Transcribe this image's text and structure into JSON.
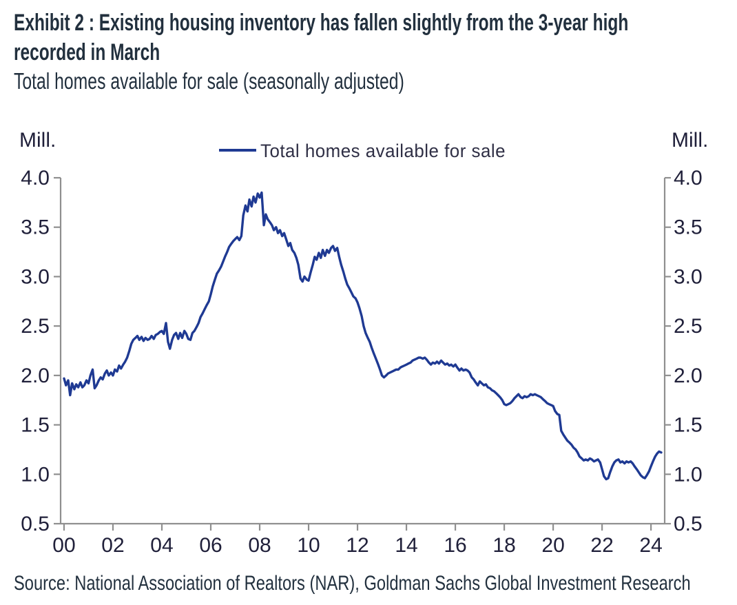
{
  "header": {
    "title_line1": "Exhibit 2 : Existing housing inventory has fallen slightly from the 3-year high",
    "title_line2": "recorded in March",
    "subtitle": "Total homes available for sale (seasonally adjusted)"
  },
  "footer": {
    "source": "Source: National Association of Realtors (NAR), Goldman Sachs Global Investment Research"
  },
  "chart_data": {
    "type": "line",
    "title": "Exhibit 2 : Existing housing inventory has fallen slightly from the 3-year high recorded in March",
    "subtitle": "Total homes available for sale (seasonally adjusted)",
    "xlabel": "",
    "ylabel": "Mill.",
    "unit_label_left": "Mill.",
    "unit_label_right": "Mill.",
    "legend_position": "top-center",
    "grid": false,
    "axis_color": "#8f8f8f",
    "tick_label_color": "#20203a",
    "line_color": "#1f3a93",
    "legend_text_color": "#2f2f45",
    "ylim": [
      0.5,
      4.0
    ],
    "xlim": [
      -0.14,
      24.56
    ],
    "x_ticks": {
      "values": [
        0,
        2,
        4,
        6,
        8,
        10,
        12,
        14,
        16,
        18,
        20,
        22,
        24
      ],
      "labels": [
        "00",
        "02",
        "04",
        "06",
        "08",
        "10",
        "12",
        "14",
        "16",
        "18",
        "20",
        "22",
        "24"
      ]
    },
    "y_ticks": {
      "values": [
        0.5,
        1.0,
        1.5,
        2.0,
        2.5,
        3.0,
        3.5,
        4.0
      ],
      "labels": [
        "0.5",
        "1.0",
        "1.5",
        "2.0",
        "2.5",
        "3.0",
        "3.5",
        "4.0"
      ]
    },
    "legend": [
      {
        "label": "Total homes available for sale",
        "color": "#1f3a93"
      }
    ],
    "series": [
      {
        "name": "Total homes available for sale",
        "points": [
          [
            0.0,
            1.97
          ],
          [
            0.08,
            1.9
          ],
          [
            0.17,
            1.95
          ],
          [
            0.25,
            1.8
          ],
          [
            0.33,
            1.92
          ],
          [
            0.42,
            1.86
          ],
          [
            0.5,
            1.91
          ],
          [
            0.58,
            1.88
          ],
          [
            0.67,
            1.93
          ],
          [
            0.75,
            1.88
          ],
          [
            0.83,
            1.9
          ],
          [
            0.92,
            1.95
          ],
          [
            1.0,
            1.92
          ],
          [
            1.08,
            2.0
          ],
          [
            1.17,
            2.06
          ],
          [
            1.25,
            1.87
          ],
          [
            1.33,
            1.9
          ],
          [
            1.42,
            1.95
          ],
          [
            1.5,
            1.98
          ],
          [
            1.58,
            1.96
          ],
          [
            1.67,
            2.02
          ],
          [
            1.75,
            2.05
          ],
          [
            1.83,
            2.0
          ],
          [
            1.92,
            2.03
          ],
          [
            2.0,
            2.0
          ],
          [
            2.08,
            2.06
          ],
          [
            2.17,
            2.04
          ],
          [
            2.25,
            2.1
          ],
          [
            2.33,
            2.07
          ],
          [
            2.42,
            2.11
          ],
          [
            2.5,
            2.14
          ],
          [
            2.58,
            2.18
          ],
          [
            2.67,
            2.25
          ],
          [
            2.75,
            2.32
          ],
          [
            2.83,
            2.36
          ],
          [
            2.92,
            2.38
          ],
          [
            3.0,
            2.4
          ],
          [
            3.08,
            2.36
          ],
          [
            3.17,
            2.39
          ],
          [
            3.25,
            2.35
          ],
          [
            3.33,
            2.38
          ],
          [
            3.42,
            2.36
          ],
          [
            3.5,
            2.37
          ],
          [
            3.58,
            2.4
          ],
          [
            3.67,
            2.37
          ],
          [
            3.75,
            2.41
          ],
          [
            3.83,
            2.42
          ],
          [
            3.92,
            2.44
          ],
          [
            4.0,
            2.45
          ],
          [
            4.08,
            2.42
          ],
          [
            4.17,
            2.53
          ],
          [
            4.25,
            2.34
          ],
          [
            4.33,
            2.27
          ],
          [
            4.42,
            2.36
          ],
          [
            4.5,
            2.41
          ],
          [
            4.58,
            2.43
          ],
          [
            4.67,
            2.37
          ],
          [
            4.75,
            2.43
          ],
          [
            4.83,
            2.38
          ],
          [
            4.92,
            2.45
          ],
          [
            5.0,
            2.42
          ],
          [
            5.08,
            2.37
          ],
          [
            5.17,
            2.36
          ],
          [
            5.25,
            2.43
          ],
          [
            5.33,
            2.45
          ],
          [
            5.42,
            2.49
          ],
          [
            5.5,
            2.53
          ],
          [
            5.58,
            2.59
          ],
          [
            5.67,
            2.63
          ],
          [
            5.75,
            2.67
          ],
          [
            5.83,
            2.71
          ],
          [
            5.92,
            2.75
          ],
          [
            6.0,
            2.82
          ],
          [
            6.08,
            2.9
          ],
          [
            6.17,
            2.97
          ],
          [
            6.25,
            3.03
          ],
          [
            6.33,
            3.06
          ],
          [
            6.42,
            3.1
          ],
          [
            6.5,
            3.15
          ],
          [
            6.58,
            3.2
          ],
          [
            6.67,
            3.25
          ],
          [
            6.75,
            3.3
          ],
          [
            6.83,
            3.33
          ],
          [
            6.92,
            3.36
          ],
          [
            7.0,
            3.38
          ],
          [
            7.08,
            3.4
          ],
          [
            7.17,
            3.37
          ],
          [
            7.25,
            3.41
          ],
          [
            7.33,
            3.62
          ],
          [
            7.42,
            3.72
          ],
          [
            7.5,
            3.66
          ],
          [
            7.58,
            3.78
          ],
          [
            7.67,
            3.71
          ],
          [
            7.75,
            3.81
          ],
          [
            7.83,
            3.75
          ],
          [
            7.92,
            3.84
          ],
          [
            8.0,
            3.8
          ],
          [
            8.08,
            3.85
          ],
          [
            8.17,
            3.52
          ],
          [
            8.25,
            3.63
          ],
          [
            8.33,
            3.58
          ],
          [
            8.42,
            3.55
          ],
          [
            8.5,
            3.52
          ],
          [
            8.58,
            3.47
          ],
          [
            8.67,
            3.5
          ],
          [
            8.75,
            3.44
          ],
          [
            8.83,
            3.47
          ],
          [
            8.92,
            3.41
          ],
          [
            9.0,
            3.44
          ],
          [
            9.08,
            3.38
          ],
          [
            9.17,
            3.31
          ],
          [
            9.25,
            3.34
          ],
          [
            9.33,
            3.27
          ],
          [
            9.42,
            3.24
          ],
          [
            9.5,
            3.19
          ],
          [
            9.58,
            3.12
          ],
          [
            9.67,
            2.98
          ],
          [
            9.75,
            2.95
          ],
          [
            9.83,
            3.0
          ],
          [
            9.92,
            2.97
          ],
          [
            10.0,
            2.96
          ],
          [
            10.08,
            3.04
          ],
          [
            10.17,
            3.12
          ],
          [
            10.25,
            3.2
          ],
          [
            10.33,
            3.17
          ],
          [
            10.42,
            3.24
          ],
          [
            10.5,
            3.19
          ],
          [
            10.58,
            3.27
          ],
          [
            10.67,
            3.21
          ],
          [
            10.75,
            3.27
          ],
          [
            10.83,
            3.24
          ],
          [
            10.92,
            3.29
          ],
          [
            11.0,
            3.31
          ],
          [
            11.08,
            3.26
          ],
          [
            11.17,
            3.29
          ],
          [
            11.25,
            3.2
          ],
          [
            11.33,
            3.12
          ],
          [
            11.42,
            3.05
          ],
          [
            11.5,
            2.98
          ],
          [
            11.58,
            2.92
          ],
          [
            11.67,
            2.88
          ],
          [
            11.75,
            2.84
          ],
          [
            11.83,
            2.8
          ],
          [
            11.92,
            2.78
          ],
          [
            12.0,
            2.74
          ],
          [
            12.08,
            2.68
          ],
          [
            12.17,
            2.6
          ],
          [
            12.25,
            2.5
          ],
          [
            12.33,
            2.43
          ],
          [
            12.42,
            2.38
          ],
          [
            12.5,
            2.34
          ],
          [
            12.58,
            2.28
          ],
          [
            12.67,
            2.22
          ],
          [
            12.75,
            2.17
          ],
          [
            12.83,
            2.12
          ],
          [
            12.92,
            2.06
          ],
          [
            13.0,
            2.0
          ],
          [
            13.08,
            1.98
          ],
          [
            13.17,
            2.0
          ],
          [
            13.25,
            2.02
          ],
          [
            13.33,
            2.03
          ],
          [
            13.42,
            2.04
          ],
          [
            13.5,
            2.05
          ],
          [
            13.58,
            2.06
          ],
          [
            13.67,
            2.06
          ],
          [
            13.75,
            2.08
          ],
          [
            13.83,
            2.09
          ],
          [
            13.92,
            2.1
          ],
          [
            14.0,
            2.11
          ],
          [
            14.08,
            2.12
          ],
          [
            14.17,
            2.13
          ],
          [
            14.25,
            2.15
          ],
          [
            14.33,
            2.16
          ],
          [
            14.42,
            2.17
          ],
          [
            14.5,
            2.18
          ],
          [
            14.58,
            2.18
          ],
          [
            14.67,
            2.17
          ],
          [
            14.75,
            2.18
          ],
          [
            14.83,
            2.16
          ],
          [
            14.92,
            2.13
          ],
          [
            15.0,
            2.11
          ],
          [
            15.08,
            2.13
          ],
          [
            15.17,
            2.12
          ],
          [
            15.25,
            2.14
          ],
          [
            15.33,
            2.12
          ],
          [
            15.42,
            2.15
          ],
          [
            15.5,
            2.13
          ],
          [
            15.58,
            2.11
          ],
          [
            15.67,
            2.12
          ],
          [
            15.75,
            2.1
          ],
          [
            15.83,
            2.11
          ],
          [
            15.92,
            2.09
          ],
          [
            16.0,
            2.11
          ],
          [
            16.08,
            2.08
          ],
          [
            16.17,
            2.05
          ],
          [
            16.25,
            2.07
          ],
          [
            16.33,
            2.05
          ],
          [
            16.42,
            2.06
          ],
          [
            16.5,
            2.05
          ],
          [
            16.58,
            2.03
          ],
          [
            16.67,
            1.98
          ],
          [
            16.75,
            1.96
          ],
          [
            16.83,
            1.93
          ],
          [
            16.92,
            1.9
          ],
          [
            17.0,
            1.94
          ],
          [
            17.08,
            1.92
          ],
          [
            17.17,
            1.9
          ],
          [
            17.25,
            1.91
          ],
          [
            17.33,
            1.88
          ],
          [
            17.42,
            1.87
          ],
          [
            17.5,
            1.85
          ],
          [
            17.58,
            1.84
          ],
          [
            17.67,
            1.82
          ],
          [
            17.75,
            1.8
          ],
          [
            17.83,
            1.78
          ],
          [
            17.92,
            1.75
          ],
          [
            18.0,
            1.71
          ],
          [
            18.08,
            1.7
          ],
          [
            18.17,
            1.71
          ],
          [
            18.25,
            1.72
          ],
          [
            18.33,
            1.74
          ],
          [
            18.42,
            1.77
          ],
          [
            18.5,
            1.79
          ],
          [
            18.58,
            1.81
          ],
          [
            18.67,
            1.78
          ],
          [
            18.75,
            1.77
          ],
          [
            18.83,
            1.79
          ],
          [
            18.92,
            1.78
          ],
          [
            19.0,
            1.79
          ],
          [
            19.08,
            1.81
          ],
          [
            19.17,
            1.8
          ],
          [
            19.25,
            1.81
          ],
          [
            19.33,
            1.8
          ],
          [
            19.42,
            1.79
          ],
          [
            19.5,
            1.78
          ],
          [
            19.58,
            1.76
          ],
          [
            19.67,
            1.74
          ],
          [
            19.75,
            1.72
          ],
          [
            19.83,
            1.71
          ],
          [
            19.92,
            1.7
          ],
          [
            20.0,
            1.69
          ],
          [
            20.08,
            1.64
          ],
          [
            20.17,
            1.61
          ],
          [
            20.25,
            1.6
          ],
          [
            20.33,
            1.44
          ],
          [
            20.42,
            1.4
          ],
          [
            20.5,
            1.37
          ],
          [
            20.58,
            1.34
          ],
          [
            20.67,
            1.32
          ],
          [
            20.75,
            1.3
          ],
          [
            20.83,
            1.27
          ],
          [
            20.92,
            1.25
          ],
          [
            21.0,
            1.22
          ],
          [
            21.08,
            1.18
          ],
          [
            21.17,
            1.16
          ],
          [
            21.25,
            1.14
          ],
          [
            21.33,
            1.15
          ],
          [
            21.42,
            1.14
          ],
          [
            21.5,
            1.16
          ],
          [
            21.58,
            1.15
          ],
          [
            21.67,
            1.13
          ],
          [
            21.75,
            1.14
          ],
          [
            21.83,
            1.15
          ],
          [
            21.92,
            1.12
          ],
          [
            22.0,
            1.05
          ],
          [
            22.08,
            0.98
          ],
          [
            22.17,
            0.95
          ],
          [
            22.25,
            0.96
          ],
          [
            22.33,
            1.02
          ],
          [
            22.42,
            1.08
          ],
          [
            22.5,
            1.12
          ],
          [
            22.58,
            1.14
          ],
          [
            22.67,
            1.15
          ],
          [
            22.75,
            1.12
          ],
          [
            22.83,
            1.13
          ],
          [
            22.92,
            1.11
          ],
          [
            23.0,
            1.13
          ],
          [
            23.08,
            1.12
          ],
          [
            23.17,
            1.13
          ],
          [
            23.25,
            1.11
          ],
          [
            23.33,
            1.08
          ],
          [
            23.42,
            1.05
          ],
          [
            23.5,
            1.02
          ],
          [
            23.58,
            0.99
          ],
          [
            23.67,
            0.97
          ],
          [
            23.75,
            0.96
          ],
          [
            23.83,
            0.99
          ],
          [
            23.92,
            1.03
          ],
          [
            24.0,
            1.08
          ],
          [
            24.08,
            1.13
          ],
          [
            24.17,
            1.18
          ],
          [
            24.25,
            1.21
          ],
          [
            24.33,
            1.23
          ],
          [
            24.42,
            1.22
          ]
        ]
      }
    ]
  }
}
